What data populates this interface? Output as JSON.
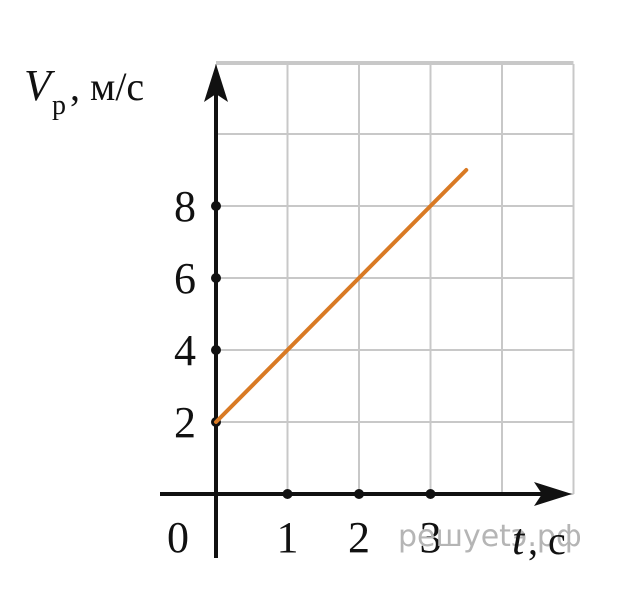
{
  "chart_data": {
    "type": "line",
    "x_range": [
      0,
      5
    ],
    "y_range": [
      0,
      12
    ],
    "grid": true,
    "x_ticks": [
      1,
      2,
      3
    ],
    "y_ticks": [
      2,
      4,
      6,
      8
    ],
    "origin_label": "0",
    "series": [
      {
        "x": [
          0,
          3.5
        ],
        "y": [
          2,
          9
        ],
        "color": "#d97a24"
      }
    ],
    "ylabel": {
      "symbol": "V",
      "subscript": "р",
      "unit": ", м/с"
    },
    "xlabel": {
      "symbol": "t",
      "unit": ", с"
    },
    "watermark": "решуеtэ.рф"
  }
}
